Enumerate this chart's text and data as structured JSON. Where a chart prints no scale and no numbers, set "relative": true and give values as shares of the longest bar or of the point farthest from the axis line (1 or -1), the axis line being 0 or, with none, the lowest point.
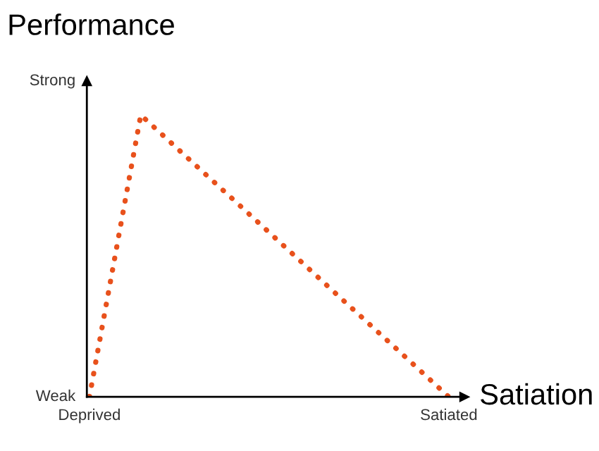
{
  "chart_data": {
    "type": "line",
    "relative": true,
    "ylabel": "Performance",
    "xlabel": "Satiation",
    "categories": [
      "Deprived",
      null,
      null,
      null,
      null,
      null,
      null,
      "Satiated"
    ],
    "series": [
      {
        "color": "#e8511c",
        "values": [
          0,
          1,
          0.833,
          0.667,
          0.5,
          0.333,
          0.167,
          0
        ]
      }
    ],
    "annotations": [
      "Strong",
      "Weak"
    ],
    "line_style": "dotted",
    "marker": "none",
    "grid": false,
    "legend": false
  }
}
